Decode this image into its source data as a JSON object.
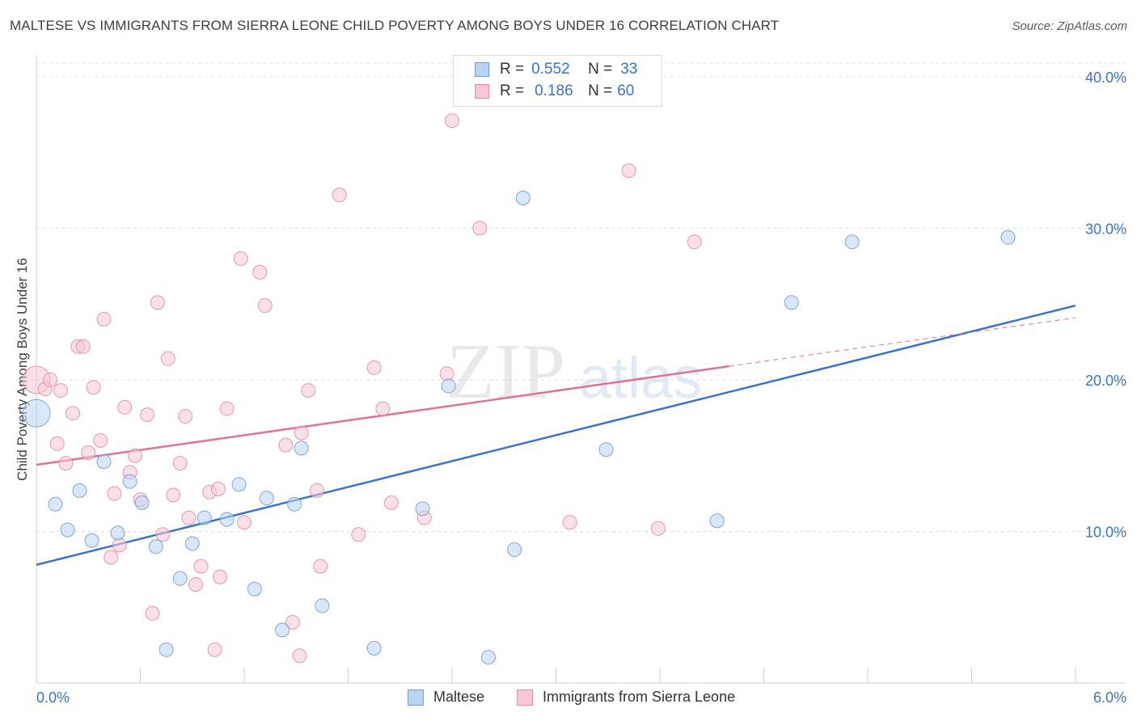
{
  "header": {
    "title": "MALTESE VS IMMIGRANTS FROM SIERRA LEONE CHILD POVERTY AMONG BOYS UNDER 16 CORRELATION CHART",
    "source": "Source: ZipAtlas.com"
  },
  "legend_top": {
    "rows": [
      {
        "r_label": "R =",
        "r_value": "0.552",
        "n_label": "N =",
        "n_value": "33"
      },
      {
        "r_label": "R =",
        "r_value": "0.186",
        "n_label": "N =",
        "n_value": "60"
      }
    ]
  },
  "watermark": {
    "zip": "ZIP",
    "atlas": "atlas"
  },
  "colors": {
    "maltese_fill": "#b9d3f3",
    "maltese_stroke": "#6f9fd8",
    "maltese_line": "#3b73c6",
    "sierra_fill": "#f8c6d6",
    "sierra_stroke": "#e68aa8",
    "sierra_line": "#e07099",
    "axis_text": "#3b73c6",
    "grid": "#dddddd"
  },
  "chart_data": {
    "type": "scatter",
    "title": "MALTESE VS IMMIGRANTS FROM SIERRA LEONE CHILD POVERTY AMONG BOYS UNDER 16 CORRELATION CHART",
    "xlabel": "",
    "ylabel": "Child Poverty Among Boys Under 16",
    "xlim": [
      0,
      6
    ],
    "ylim": [
      0,
      40.9
    ],
    "x_tick_labels": [
      "0.0%",
      "6.0%"
    ],
    "y_ticks": [
      10,
      20,
      30,
      40
    ],
    "y_tick_labels": [
      "10.0%",
      "20.0%",
      "30.0%",
      "40.0%"
    ],
    "grid": true,
    "legend_position": "bottom",
    "series": [
      {
        "name": "Maltese",
        "r": 0.552,
        "n": 33,
        "trend": {
          "x": [
            0,
            6
          ],
          "y": [
            7.8,
            24.9
          ],
          "dashed_extension": false
        },
        "points": [
          {
            "x": 0.0,
            "y": 17.8,
            "size": "large"
          },
          {
            "x": 0.11,
            "y": 11.8
          },
          {
            "x": 0.18,
            "y": 10.1
          },
          {
            "x": 0.25,
            "y": 12.7
          },
          {
            "x": 0.32,
            "y": 9.4
          },
          {
            "x": 0.39,
            "y": 14.6
          },
          {
            "x": 0.47,
            "y": 9.9
          },
          {
            "x": 0.54,
            "y": 13.3
          },
          {
            "x": 0.61,
            "y": 11.9
          },
          {
            "x": 0.69,
            "y": 9.0
          },
          {
            "x": 0.75,
            "y": 2.2
          },
          {
            "x": 0.83,
            "y": 6.9
          },
          {
            "x": 0.9,
            "y": 9.2
          },
          {
            "x": 0.97,
            "y": 10.9
          },
          {
            "x": 1.1,
            "y": 10.8
          },
          {
            "x": 1.17,
            "y": 13.1
          },
          {
            "x": 1.26,
            "y": 6.2
          },
          {
            "x": 1.33,
            "y": 12.2
          },
          {
            "x": 1.42,
            "y": 3.5
          },
          {
            "x": 1.49,
            "y": 11.8
          },
          {
            "x": 1.53,
            "y": 15.5
          },
          {
            "x": 1.65,
            "y": 5.1
          },
          {
            "x": 1.95,
            "y": 2.3
          },
          {
            "x": 2.23,
            "y": 11.5
          },
          {
            "x": 2.38,
            "y": 19.6
          },
          {
            "x": 2.61,
            "y": 1.7
          },
          {
            "x": 2.76,
            "y": 8.8
          },
          {
            "x": 2.81,
            "y": 32.0
          },
          {
            "x": 3.29,
            "y": 15.4
          },
          {
            "x": 3.93,
            "y": 10.7
          },
          {
            "x": 4.36,
            "y": 25.1
          },
          {
            "x": 4.71,
            "y": 29.1
          },
          {
            "x": 5.61,
            "y": 29.4
          }
        ]
      },
      {
        "name": "Immigrants from Sierra Leone",
        "r": 0.186,
        "n": 60,
        "trend": {
          "x": [
            0,
            4.0
          ],
          "y": [
            14.4,
            20.9
          ],
          "dashed_extension": {
            "x": [
              4.0,
              6
            ],
            "y": [
              20.9,
              24.1
            ]
          }
        },
        "points": [
          {
            "x": 0.0,
            "y": 20.0,
            "size": "large"
          },
          {
            "x": 0.05,
            "y": 19.4
          },
          {
            "x": 0.08,
            "y": 20.0
          },
          {
            "x": 0.12,
            "y": 15.8
          },
          {
            "x": 0.14,
            "y": 19.3
          },
          {
            "x": 0.17,
            "y": 14.5
          },
          {
            "x": 0.21,
            "y": 17.8
          },
          {
            "x": 0.24,
            "y": 22.2
          },
          {
            "x": 0.27,
            "y": 22.2
          },
          {
            "x": 0.3,
            "y": 15.2
          },
          {
            "x": 0.33,
            "y": 19.5
          },
          {
            "x": 0.37,
            "y": 16.0
          },
          {
            "x": 0.39,
            "y": 24.0
          },
          {
            "x": 0.43,
            "y": 8.3
          },
          {
            "x": 0.45,
            "y": 12.5
          },
          {
            "x": 0.48,
            "y": 9.1
          },
          {
            "x": 0.51,
            "y": 18.2
          },
          {
            "x": 0.54,
            "y": 13.9
          },
          {
            "x": 0.57,
            "y": 15.0
          },
          {
            "x": 0.6,
            "y": 12.1
          },
          {
            "x": 0.64,
            "y": 17.7
          },
          {
            "x": 0.67,
            "y": 4.6
          },
          {
            "x": 0.7,
            "y": 25.1
          },
          {
            "x": 0.73,
            "y": 9.8
          },
          {
            "x": 0.76,
            "y": 21.4
          },
          {
            "x": 0.79,
            "y": 12.4
          },
          {
            "x": 0.83,
            "y": 14.5
          },
          {
            "x": 0.86,
            "y": 17.6
          },
          {
            "x": 0.88,
            "y": 10.9
          },
          {
            "x": 0.92,
            "y": 6.5
          },
          {
            "x": 0.95,
            "y": 7.7
          },
          {
            "x": 1.0,
            "y": 12.6
          },
          {
            "x": 1.03,
            "y": 2.2
          },
          {
            "x": 1.05,
            "y": 12.8
          },
          {
            "x": 1.06,
            "y": 7.0
          },
          {
            "x": 1.1,
            "y": 18.1
          },
          {
            "x": 1.18,
            "y": 28.0
          },
          {
            "x": 1.2,
            "y": 10.6
          },
          {
            "x": 1.29,
            "y": 27.1
          },
          {
            "x": 1.32,
            "y": 24.9
          },
          {
            "x": 1.44,
            "y": 15.7
          },
          {
            "x": 1.48,
            "y": 4.0
          },
          {
            "x": 1.52,
            "y": 1.8
          },
          {
            "x": 1.53,
            "y": 16.5
          },
          {
            "x": 1.57,
            "y": 19.3
          },
          {
            "x": 1.62,
            "y": 12.7
          },
          {
            "x": 1.64,
            "y": 7.7
          },
          {
            "x": 1.75,
            "y": 32.2
          },
          {
            "x": 1.86,
            "y": 9.8
          },
          {
            "x": 1.95,
            "y": 20.8
          },
          {
            "x": 2.0,
            "y": 18.1
          },
          {
            "x": 2.05,
            "y": 11.9
          },
          {
            "x": 2.24,
            "y": 10.9
          },
          {
            "x": 2.37,
            "y": 20.4
          },
          {
            "x": 2.4,
            "y": 37.1
          },
          {
            "x": 2.56,
            "y": 30.0
          },
          {
            "x": 3.08,
            "y": 10.6
          },
          {
            "x": 3.42,
            "y": 33.8
          },
          {
            "x": 3.59,
            "y": 10.2
          },
          {
            "x": 3.8,
            "y": 29.1
          }
        ]
      }
    ]
  },
  "legend_bottom": {
    "items": [
      "Maltese",
      "Immigrants from Sierra Leone"
    ]
  },
  "y_axis_label": "Child Poverty Among Boys Under 16",
  "x_axis": {
    "left_label": "0.0%",
    "right_label": "6.0%"
  }
}
